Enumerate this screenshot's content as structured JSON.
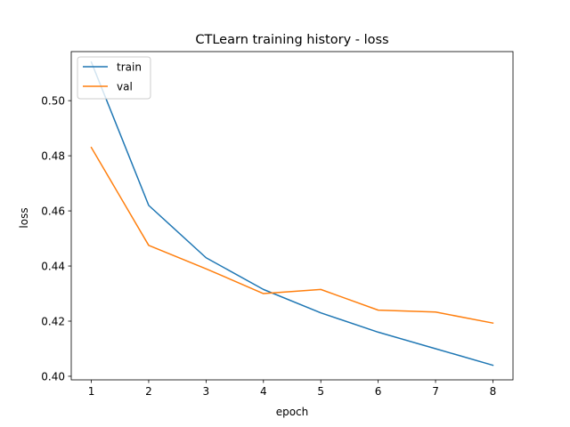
{
  "chart_data": {
    "type": "line",
    "title": "CTLearn training history - loss",
    "xlabel": "epoch",
    "ylabel": "loss",
    "x": [
      1,
      2,
      3,
      4,
      5,
      6,
      7,
      8
    ],
    "series": [
      {
        "name": "train",
        "color": "#1f77b4",
        "values": [
          0.514,
          0.462,
          0.443,
          0.4315,
          0.423,
          0.416,
          0.41,
          0.404
        ]
      },
      {
        "name": "val",
        "color": "#ff7f0e",
        "values": [
          0.483,
          0.4475,
          0.439,
          0.43,
          0.4315,
          0.424,
          0.4233,
          0.4193
        ]
      }
    ],
    "xlim": [
      0.65,
      8.35
    ],
    "ylim": [
      0.3987,
      0.5178
    ],
    "xticks": [
      1,
      2,
      3,
      4,
      5,
      6,
      7,
      8
    ],
    "yticks": [
      0.4,
      0.42,
      0.44,
      0.46,
      0.48,
      0.5
    ],
    "ytick_labels": [
      "0.40",
      "0.42",
      "0.44",
      "0.46",
      "0.48",
      "0.50"
    ],
    "grid": false,
    "legend_position": "top-left"
  }
}
